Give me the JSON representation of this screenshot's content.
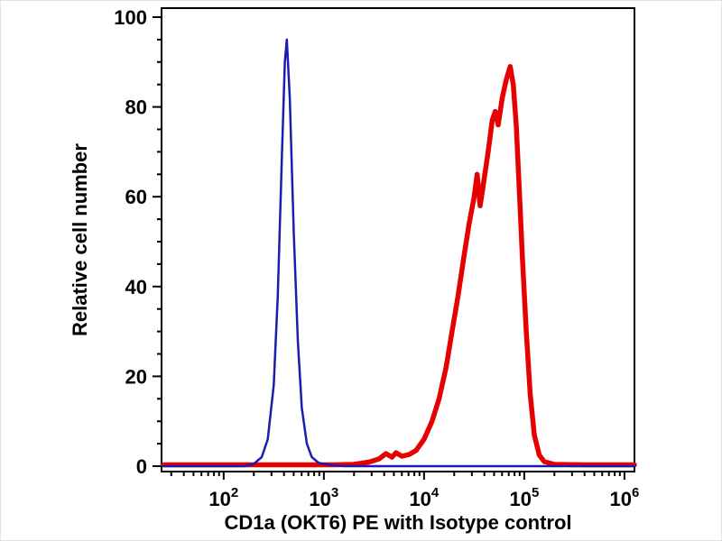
{
  "figure": {
    "background": "#ffffff",
    "axis_color": "#000000"
  },
  "chart_data": {
    "type": "line",
    "subtype": "flow-cytometry-histogram",
    "title": "",
    "xlabel": "CD1a (OKT6) PE with Isotype control",
    "ylabel": "Relative cell number",
    "x_scale": "log10",
    "xlim": [
      1.38,
      6.1
    ],
    "ylim": [
      0,
      100
    ],
    "grid": false,
    "legend": "none",
    "x_ticks": [
      {
        "base": "10",
        "exp": "2"
      },
      {
        "base": "10",
        "exp": "3"
      },
      {
        "base": "10",
        "exp": "4"
      },
      {
        "base": "10",
        "exp": "5"
      },
      {
        "base": "10",
        "exp": "6"
      }
    ],
    "x_minor_offsets": [
      0.301,
      0.4771,
      0.602,
      0.699,
      0.7782,
      0.8451,
      0.903,
      0.9542
    ],
    "y_ticks": [
      0,
      20,
      40,
      60,
      80,
      100
    ],
    "y_minor_step": 5,
    "series": [
      {
        "id": "cd1a-pe",
        "name": "CD1a (OKT6) PE",
        "color": "#e60000",
        "width": 5.5,
        "points": [
          [
            1.4,
            0.3
          ],
          [
            2.6,
            0.3
          ],
          [
            3.1,
            0.3
          ],
          [
            3.3,
            0.4
          ],
          [
            3.45,
            0.9
          ],
          [
            3.55,
            1.6
          ],
          [
            3.62,
            2.8
          ],
          [
            3.68,
            2.0
          ],
          [
            3.72,
            3.0
          ],
          [
            3.78,
            2.2
          ],
          [
            3.85,
            2.6
          ],
          [
            3.92,
            3.5
          ],
          [
            4.0,
            6.0
          ],
          [
            4.08,
            10.0
          ],
          [
            4.15,
            15.0
          ],
          [
            4.22,
            22.0
          ],
          [
            4.28,
            30.0
          ],
          [
            4.34,
            38.0
          ],
          [
            4.4,
            47.0
          ],
          [
            4.45,
            54.0
          ],
          [
            4.5,
            60.0
          ],
          [
            4.53,
            65.0
          ],
          [
            4.56,
            58.0
          ],
          [
            4.6,
            64.0
          ],
          [
            4.64,
            70.0
          ],
          [
            4.68,
            77.0
          ],
          [
            4.71,
            79.0
          ],
          [
            4.74,
            76.0
          ],
          [
            4.78,
            82.0
          ],
          [
            4.82,
            86.0
          ],
          [
            4.86,
            89.0
          ],
          [
            4.89,
            85.0
          ],
          [
            4.92,
            76.0
          ],
          [
            4.95,
            62.0
          ],
          [
            4.98,
            47.0
          ],
          [
            5.02,
            30.0
          ],
          [
            5.06,
            16.0
          ],
          [
            5.1,
            7.0
          ],
          [
            5.15,
            2.5
          ],
          [
            5.2,
            1.0
          ],
          [
            5.3,
            0.4
          ],
          [
            5.6,
            0.3
          ],
          [
            6.1,
            0.3
          ]
        ]
      },
      {
        "id": "isotype-control",
        "name": "Isotype control",
        "color": "#1c1cae",
        "width": 2.5,
        "points": [
          [
            1.4,
            0.0
          ],
          [
            2.2,
            0.0
          ],
          [
            2.3,
            0.5
          ],
          [
            2.38,
            2.0
          ],
          [
            2.44,
            6.0
          ],
          [
            2.5,
            18.0
          ],
          [
            2.54,
            38.0
          ],
          [
            2.58,
            68.0
          ],
          [
            2.61,
            90.0
          ],
          [
            2.63,
            95.0
          ],
          [
            2.66,
            82.0
          ],
          [
            2.7,
            52.0
          ],
          [
            2.74,
            28.0
          ],
          [
            2.78,
            13.0
          ],
          [
            2.83,
            5.0
          ],
          [
            2.88,
            2.0
          ],
          [
            2.95,
            0.7
          ],
          [
            3.05,
            0.3
          ],
          [
            3.2,
            0.0
          ],
          [
            6.1,
            0.0
          ]
        ]
      }
    ]
  }
}
